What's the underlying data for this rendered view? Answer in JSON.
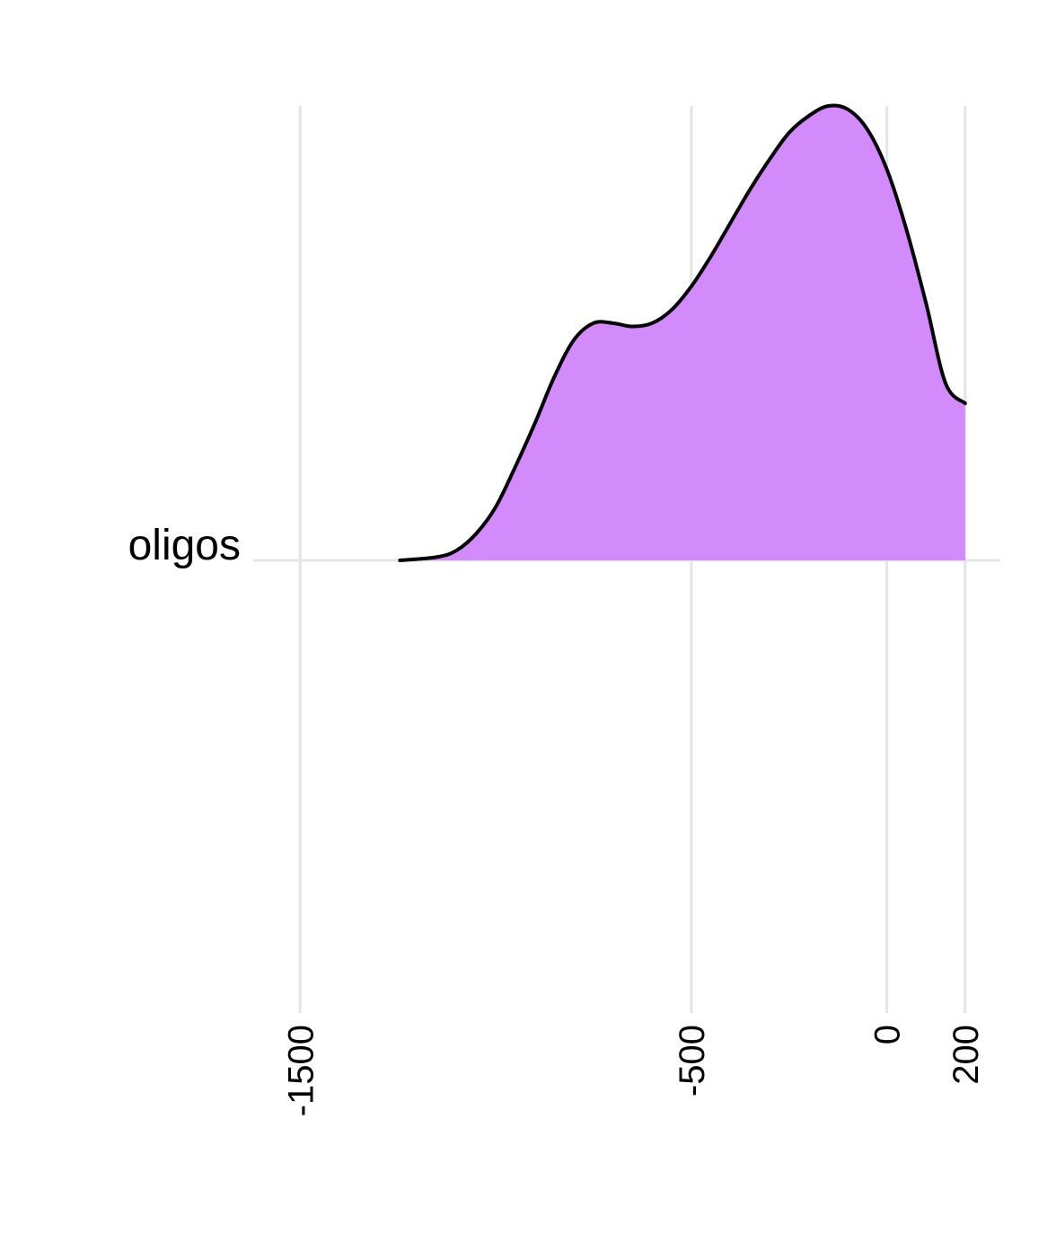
{
  "chart_data": {
    "type": "area",
    "subtype": "ridgeline-density",
    "categories": [
      "oligos"
    ],
    "x_ticks": [
      -1500,
      -500,
      0,
      200
    ],
    "x_tick_labels": [
      "-1500",
      "-500",
      "0",
      "200"
    ],
    "xlim": [
      -1620,
      290
    ],
    "x_tick_label_rotation": -90,
    "grid": true,
    "legend": "none",
    "fill_color": "#d38afb",
    "line_color": "#000000",
    "grid_color": "#e5e5e5",
    "series": [
      {
        "category": "oligos",
        "x": [
          -1245,
          -1150,
          -1100,
          -1050,
          -1000,
          -950,
          -900,
          -850,
          -800,
          -750,
          -700,
          -650,
          -600,
          -550,
          -500,
          -450,
          -400,
          -350,
          -300,
          -250,
          -200,
          -150,
          -100,
          -50,
          0,
          50,
          100,
          150,
          200
        ],
        "density": [
          0.0,
          0.01,
          0.03,
          0.08,
          0.16,
          0.28,
          0.41,
          0.55,
          0.66,
          0.71,
          0.71,
          0.7,
          0.71,
          0.75,
          0.82,
          0.91,
          1.01,
          1.11,
          1.2,
          1.28,
          1.33,
          1.36,
          1.35,
          1.29,
          1.17,
          0.99,
          0.77,
          0.53,
          0.47
        ]
      }
    ]
  }
}
